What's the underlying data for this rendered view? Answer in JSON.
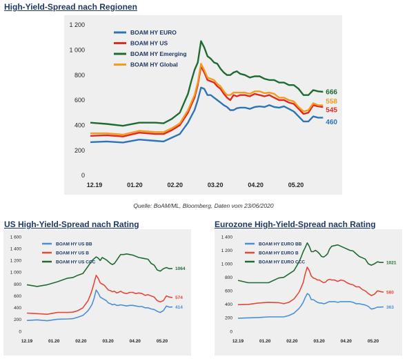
{
  "source": "Quelle: BoAM/ML, Bloomberg, Daten vom 23/06/2020",
  "chart_data": [
    {
      "type": "line",
      "title": "High-Yield-Spread nach Regionen",
      "x_ticks": [
        "12.19",
        "01.20",
        "02.20",
        "03.20",
        "04.20",
        "05.20"
      ],
      "y_ticks": [
        "0",
        "200",
        "400",
        "600",
        "800",
        "1 000",
        "1 200"
      ],
      "ylim": [
        0,
        1200
      ],
      "xlim": [
        0,
        145
      ],
      "grid": false,
      "legend_position": "top-left",
      "x": [
        0,
        10,
        20,
        30,
        40,
        45,
        50,
        55,
        60,
        62,
        64,
        66,
        68,
        70,
        72,
        74,
        76,
        78,
        80,
        82,
        84,
        86,
        88,
        90,
        92,
        95,
        98,
        101,
        104,
        107,
        110,
        113,
        116,
        119,
        122,
        125,
        128,
        131,
        134,
        137,
        140,
        143
      ],
      "series": [
        {
          "name": "BOAM HY EURO",
          "color": "#2e74b5",
          "end_label": "460",
          "values": [
            265,
            270,
            262,
            285,
            275,
            270,
            300,
            330,
            420,
            470,
            520,
            600,
            700,
            690,
            640,
            640,
            620,
            600,
            580,
            560,
            545,
            520,
            520,
            535,
            540,
            540,
            530,
            545,
            550,
            545,
            560,
            545,
            540,
            550,
            530,
            510,
            470,
            430,
            430,
            470,
            460,
            460
          ]
        },
        {
          "name": "BOAM HY US",
          "color": "#e3281c",
          "end_label": "545",
          "values": [
            315,
            320,
            310,
            340,
            330,
            330,
            360,
            400,
            500,
            560,
            620,
            720,
            870,
            820,
            760,
            750,
            740,
            710,
            690,
            650,
            620,
            600,
            640,
            630,
            640,
            640,
            630,
            650,
            640,
            630,
            640,
            620,
            600,
            600,
            580,
            570,
            530,
            490,
            500,
            560,
            550,
            545
          ]
        },
        {
          "name": "BOAM HY Emerging",
          "color": "#1e6b32",
          "end_label": "666",
          "values": [
            420,
            410,
            395,
            420,
            420,
            415,
            450,
            500,
            650,
            750,
            840,
            900,
            1070,
            1020,
            950,
            930,
            900,
            890,
            850,
            820,
            800,
            800,
            820,
            830,
            810,
            800,
            780,
            790,
            790,
            770,
            760,
            760,
            740,
            740,
            720,
            720,
            690,
            640,
            640,
            680,
            670,
            666
          ]
        },
        {
          "name": "BOAM HY Global",
          "color": "#f39c1f",
          "end_label": "558",
          "values": [
            335,
            335,
            325,
            355,
            345,
            345,
            375,
            415,
            520,
            580,
            640,
            740,
            890,
            840,
            780,
            770,
            760,
            730,
            710,
            670,
            640,
            640,
            660,
            660,
            660,
            660,
            650,
            670,
            670,
            655,
            660,
            650,
            620,
            620,
            600,
            590,
            545,
            510,
            520,
            575,
            560,
            558
          ]
        }
      ]
    },
    {
      "type": "line",
      "title": "US High-Yield-Spread nach Rating",
      "x_ticks": [
        "12.19",
        "01.20",
        "02.20",
        "03.20",
        "04.20",
        "05.20"
      ],
      "y_ticks": [
        "0",
        "200",
        "400",
        "600",
        "800",
        "1 000",
        "1 200",
        "1 400",
        "1 600"
      ],
      "ylim": [
        0,
        1600
      ],
      "xlim": [
        0,
        145
      ],
      "grid": false,
      "legend_position": "top-left",
      "x": [
        0,
        10,
        20,
        30,
        40,
        45,
        50,
        55,
        60,
        62,
        64,
        66,
        68,
        70,
        72,
        74,
        76,
        78,
        80,
        82,
        84,
        86,
        88,
        90,
        92,
        95,
        98,
        101,
        104,
        107,
        110,
        113,
        116,
        119,
        122,
        125,
        128,
        131,
        134,
        137,
        140,
        143
      ],
      "series": [
        {
          "name": "BOAM HY US BB",
          "color": "#4a8fd6",
          "end_label": "414",
          "values": [
            185,
            195,
            180,
            205,
            210,
            215,
            240,
            270,
            350,
            400,
            460,
            560,
            700,
            650,
            580,
            560,
            540,
            520,
            480,
            470,
            450,
            460,
            440,
            440,
            450,
            440,
            430,
            440,
            440,
            430,
            420,
            420,
            400,
            400,
            380,
            370,
            340,
            320,
            350,
            430,
            410,
            414
          ]
        },
        {
          "name": "BOAM HY US B",
          "color": "#e3473a",
          "end_label": "574",
          "values": [
            310,
            300,
            290,
            320,
            320,
            325,
            350,
            400,
            520,
            600,
            700,
            820,
            950,
            900,
            820,
            800,
            780,
            740,
            700,
            690,
            670,
            680,
            650,
            660,
            680,
            650,
            640,
            660,
            660,
            640,
            650,
            640,
            610,
            620,
            600,
            580,
            520,
            500,
            520,
            600,
            580,
            574
          ]
        },
        {
          "name": "BOAM HY US CCC",
          "color": "#1e6b32",
          "end_label": "1064",
          "values": [
            790,
            760,
            790,
            840,
            900,
            910,
            950,
            980,
            1100,
            1150,
            1200,
            1230,
            1260,
            1240,
            1200,
            1250,
            1230,
            1210,
            1180,
            1150,
            1130,
            1150,
            1200,
            1250,
            1300,
            1300,
            1310,
            1300,
            1290,
            1270,
            1250,
            1240,
            1230,
            1220,
            1150,
            1120,
            1040,
            1020,
            1060,
            1080,
            1060,
            1064
          ]
        }
      ]
    },
    {
      "type": "line",
      "title": "Eurozone High-Yield-Spread nach Rating",
      "x_ticks": [
        "12.19",
        "01.20",
        "02.20",
        "03.20",
        "04.20",
        "05.20"
      ],
      "y_ticks": [
        "0",
        "200",
        "400",
        "600",
        "800",
        "1 000",
        "1 200",
        "1 400"
      ],
      "ylim": [
        0,
        1400
      ],
      "xlim": [
        0,
        145
      ],
      "grid": false,
      "legend_position": "top-left",
      "x": [
        0,
        10,
        20,
        30,
        40,
        45,
        50,
        55,
        60,
        62,
        64,
        66,
        68,
        70,
        72,
        74,
        76,
        78,
        80,
        82,
        84,
        86,
        88,
        90,
        92,
        95,
        98,
        101,
        104,
        107,
        110,
        113,
        116,
        119,
        122,
        125,
        128,
        131,
        134,
        137,
        140,
        143
      ],
      "series": [
        {
          "name": "BOAM HY EURO BB",
          "color": "#4a8fd6",
          "end_label": "363",
          "values": [
            195,
            200,
            205,
            215,
            215,
            215,
            235,
            270,
            340,
            380,
            430,
            500,
            560,
            540,
            470,
            470,
            450,
            430,
            420,
            420,
            410,
            415,
            430,
            440,
            440,
            440,
            430,
            440,
            440,
            440,
            440,
            430,
            410,
            410,
            400,
            390,
            370,
            330,
            340,
            360,
            360,
            363
          ]
        },
        {
          "name": "BOAM HY EURO B",
          "color": "#e3473a",
          "end_label": "580",
          "values": [
            395,
            400,
            420,
            430,
            425,
            410,
            430,
            480,
            580,
            650,
            720,
            850,
            950,
            900,
            820,
            790,
            780,
            760,
            760,
            740,
            720,
            730,
            760,
            770,
            760,
            760,
            740,
            760,
            750,
            720,
            700,
            690,
            660,
            660,
            620,
            600,
            560,
            530,
            550,
            600,
            590,
            580
          ]
        },
        {
          "name": "BOAM HY EURO CCC",
          "color": "#1e6b32",
          "end_label": "1021",
          "values": [
            755,
            720,
            720,
            720,
            790,
            800,
            850,
            900,
            1030,
            1100,
            1180,
            1240,
            1310,
            1260,
            1180,
            1180,
            1200,
            1180,
            1150,
            1110,
            1100,
            1120,
            1150,
            1220,
            1260,
            1270,
            1280,
            1260,
            1240,
            1220,
            1200,
            1190,
            1150,
            1110,
            1090,
            1070,
            1000,
            980,
            1000,
            1030,
            1020,
            1021
          ]
        }
      ]
    }
  ]
}
